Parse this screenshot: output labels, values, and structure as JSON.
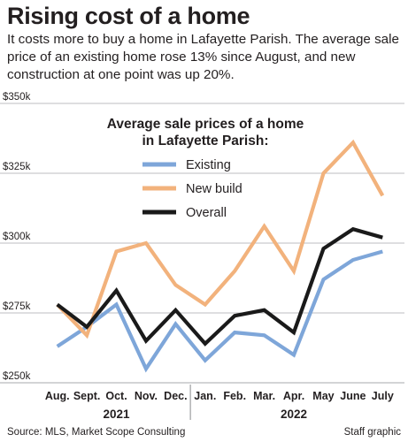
{
  "header": {
    "title": "Rising cost of a home",
    "subtitle": "It costs more to buy a home in Lafayette Parish. The average sale price of an existing home rose 13% since August, and new construction at one point was up 20%."
  },
  "footer": {
    "source": "Source: MLS, Market Scope Consulting",
    "credit": "Staff graphic"
  },
  "chart_data": {
    "type": "line",
    "title": "Average sale prices of a home in Lafayette Parish:",
    "title_lines": [
      "Average sale prices of a home",
      "in Lafayette Parish:"
    ],
    "x": [
      "Aug.",
      "Sept.",
      "Oct.",
      "Nov.",
      "Dec.",
      "Jan.",
      "Feb.",
      "Mar.",
      "Apr.",
      "May",
      "June",
      "July"
    ],
    "year_groups": [
      {
        "label": "2021",
        "months": [
          "Aug.",
          "Sept.",
          "Oct.",
          "Nov.",
          "Dec."
        ]
      },
      {
        "label": "2022",
        "months": [
          "Jan.",
          "Feb.",
          "Mar.",
          "Apr.",
          "May",
          "June",
          "July"
        ]
      }
    ],
    "yticks": [
      250000,
      275000,
      300000,
      325000,
      350000
    ],
    "ytick_labels": [
      "$250k",
      "$275k",
      "$300k",
      "$325k",
      "$350k"
    ],
    "ylim": [
      250000,
      350000
    ],
    "grid": true,
    "legend_position": "top-left",
    "series": [
      {
        "name": "Existing",
        "color": "#7ea6d9",
        "values": [
          263000,
          270000,
          278000,
          255000,
          271000,
          258000,
          268000,
          267000,
          260000,
          287000,
          294000,
          297000
        ]
      },
      {
        "name": "New build",
        "color": "#f2b27c",
        "values": [
          278000,
          267000,
          297000,
          300000,
          285000,
          278000,
          290000,
          306000,
          290000,
          325000,
          336000,
          317000
        ]
      },
      {
        "name": "Overall",
        "color": "#1a1a1a",
        "values": [
          278000,
          270000,
          283000,
          265000,
          276000,
          264000,
          274000,
          276000,
          268000,
          298000,
          305000,
          302000
        ]
      }
    ]
  }
}
